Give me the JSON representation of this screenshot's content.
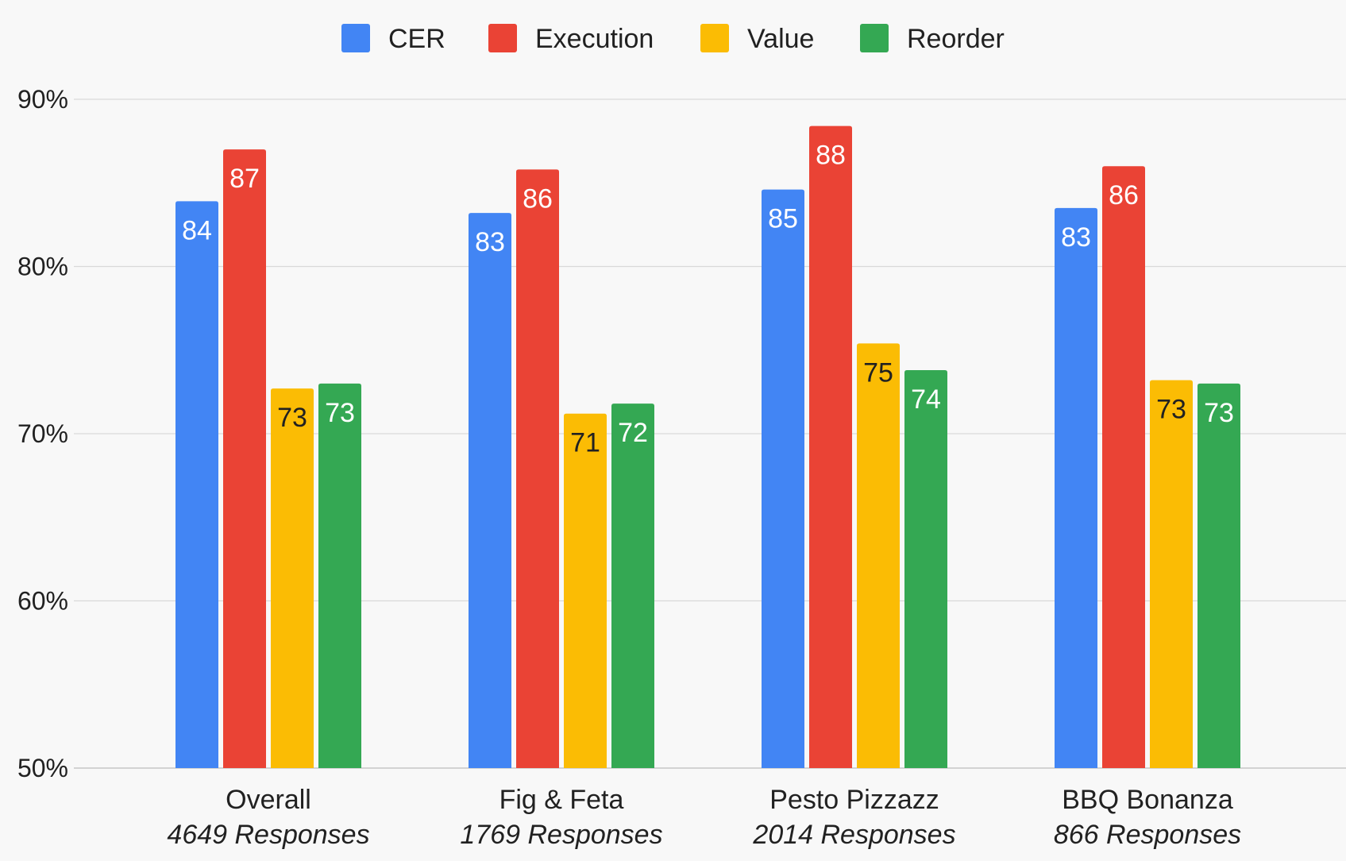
{
  "chart_data": {
    "type": "bar",
    "title": "",
    "xlabel": "",
    "ylabel": "",
    "ylim": [
      50,
      90
    ],
    "yticks": [
      50,
      60,
      70,
      80,
      90
    ],
    "ytick_labels": [
      "50%",
      "60%",
      "70%",
      "80%",
      "90%"
    ],
    "grid": true,
    "legend_position": "top-center",
    "categories": [
      "Overall",
      "Fig & Feta",
      "Pesto Pizzazz",
      "BBQ Bonanza"
    ],
    "category_subtitles": [
      "4649 Responses",
      "1769 Responses",
      "2014 Responses",
      "866 Responses"
    ],
    "series": [
      {
        "name": "CER",
        "color": "#4285f4",
        "label_color": "#ffffff",
        "values": [
          83.9,
          83.2,
          84.6,
          83.5
        ],
        "labels": [
          "84",
          "83",
          "85",
          "83"
        ]
      },
      {
        "name": "Execution",
        "color": "#ea4335",
        "label_color": "#ffffff",
        "values": [
          87.0,
          85.8,
          88.4,
          86.0
        ],
        "labels": [
          "87",
          "86",
          "88",
          "86"
        ]
      },
      {
        "name": "Value",
        "color": "#fbbc04",
        "label_color": "#212121",
        "values": [
          72.7,
          71.2,
          75.4,
          73.2
        ],
        "labels": [
          "73",
          "71",
          "75",
          "73"
        ]
      },
      {
        "name": "Reorder",
        "color": "#34a853",
        "label_color": "#ffffff",
        "values": [
          73.0,
          71.8,
          73.8,
          73.0
        ],
        "labels": [
          "73",
          "72",
          "74",
          "73"
        ]
      }
    ]
  }
}
